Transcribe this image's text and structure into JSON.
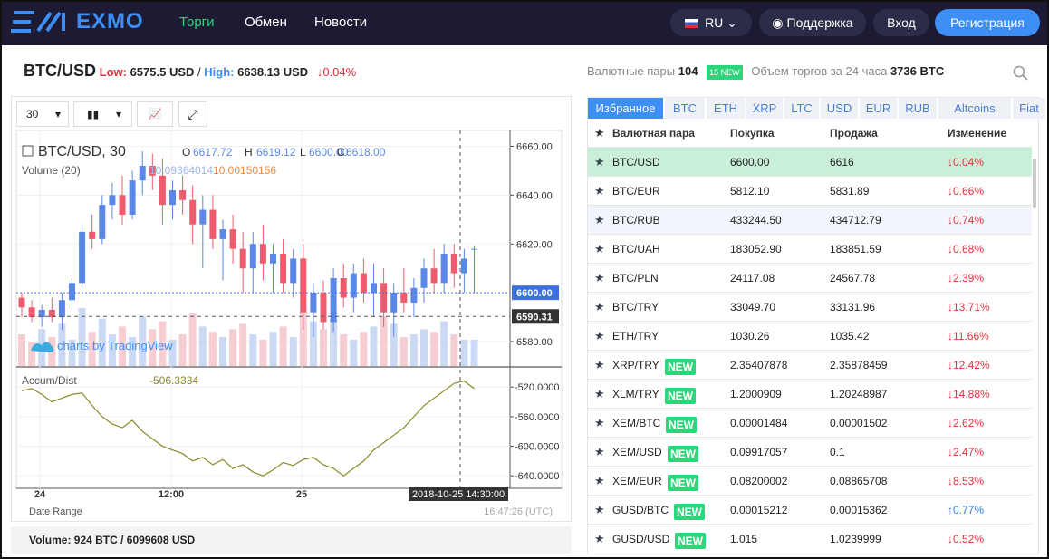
{
  "nav": {
    "logo": "EXMO",
    "menu": [
      "Торги",
      "Обмен",
      "Новости"
    ],
    "lang": "RU",
    "support": "Поддержка",
    "login": "Вход",
    "register": "Регистрация"
  },
  "ticker": {
    "pair": "BTC/USD",
    "low_label": "Low:",
    "low": "6575.5 USD",
    "separator": "/",
    "high_label": "High:",
    "high": "6638.13 USD",
    "change": "↓0.04%"
  },
  "stats": {
    "pairs_label": "Валютные пары",
    "pairs": "104",
    "new_badge": "15 NEW",
    "volume_label": "Объем торгов за 24 часа",
    "volume": "3736 BTC"
  },
  "toolbar": {
    "interval": "30"
  },
  "price_chart": {
    "symbol": "BTC/USD, 30",
    "ohlc_labels": [
      "O",
      "H",
      "L",
      "C"
    ],
    "ohlc": [
      "6617.72",
      "6619.12",
      "6600.00",
      "6618.00"
    ],
    "volume_label": "Volume (20)",
    "volume_values": [
      "10.09364014",
      "10.00150156"
    ],
    "indicator": "Accum/Dist",
    "indicator_value": "-506.3334",
    "watermark": "charts by TradingView",
    "candles": [
      [
        6598,
        6600,
        6590,
        6594
      ],
      [
        6594,
        6597,
        6588,
        6590
      ],
      [
        6590,
        6595,
        6586,
        6593
      ],
      [
        6593,
        6598,
        6588,
        6590
      ],
      [
        6590,
        6600,
        6585,
        6597
      ],
      [
        6597,
        6606,
        6593,
        6604
      ],
      [
        6604,
        6628,
        6602,
        6625
      ],
      [
        6625,
        6632,
        6618,
        6622
      ],
      [
        6622,
        6640,
        6620,
        6636
      ],
      [
        6636,
        6645,
        6630,
        6640
      ],
      [
        6640,
        6648,
        6628,
        6632
      ],
      [
        6632,
        6650,
        6630,
        6646
      ],
      [
        6646,
        6658,
        6640,
        6652
      ],
      [
        6652,
        6657,
        6642,
        6648
      ],
      [
        6648,
        6655,
        6628,
        6636
      ],
      [
        6636,
        6646,
        6630,
        6642
      ],
      [
        6642,
        6648,
        6632,
        6638
      ],
      [
        6638,
        6644,
        6620,
        6628
      ],
      [
        6628,
        6640,
        6610,
        6634
      ],
      [
        6634,
        6640,
        6618,
        6622
      ],
      [
        6622,
        6630,
        6605,
        6626
      ],
      [
        6626,
        6632,
        6612,
        6618
      ],
      [
        6618,
        6625,
        6600,
        6610
      ],
      [
        6610,
        6625,
        6600,
        6620
      ],
      [
        6620,
        6628,
        6605,
        6612
      ],
      [
        6612,
        6620,
        6600,
        6616
      ],
      [
        6616,
        6622,
        6600,
        6604
      ],
      [
        6604,
        6618,
        6598,
        6614
      ],
      [
        6614,
        6620,
        6585,
        6592
      ],
      [
        6592,
        6604,
        6582,
        6600
      ],
      [
        6600,
        6605,
        6585,
        6588
      ],
      [
        6588,
        6610,
        6584,
        6606
      ],
      [
        6606,
        6612,
        6594,
        6598
      ],
      [
        6598,
        6612,
        6592,
        6608
      ],
      [
        6608,
        6614,
        6596,
        6600
      ],
      [
        6600,
        6612,
        6590,
        6604
      ],
      [
        6604,
        6610,
        6586,
        6592
      ],
      [
        6592,
        6604,
        6582,
        6600
      ],
      [
        6600,
        6610,
        6592,
        6596
      ],
      [
        6596,
        6606,
        6590,
        6602
      ],
      [
        6602,
        6614,
        6596,
        6610
      ],
      [
        6610,
        6618,
        6600,
        6604
      ],
      [
        6604,
        6620,
        6600,
        6616
      ],
      [
        6616,
        6620,
        6602,
        6608
      ],
      [
        6608,
        6618,
        6600,
        6614
      ],
      [
        6617.72,
        6619.12,
        6600,
        6618
      ]
    ],
    "volumes": [
      12,
      9,
      14,
      11,
      16,
      10,
      22,
      13,
      18,
      12,
      15,
      11,
      19,
      14,
      17,
      10,
      12,
      20,
      15,
      13,
      11,
      14,
      16,
      12,
      10,
      13,
      15,
      11,
      21,
      17,
      14,
      18,
      12,
      10,
      13,
      15,
      19,
      16,
      11,
      12,
      14,
      13,
      17,
      12,
      10,
      10
    ],
    "ylim": [
      6570,
      6665
    ],
    "yticks": [
      {
        "value": 6660,
        "label": "6660.00"
      },
      {
        "value": 6640,
        "label": "6640.00"
      },
      {
        "value": 6620,
        "label": "6620.00"
      },
      {
        "value": 6580,
        "label": "6580.00"
      }
    ],
    "last_price": {
      "value": 6600,
      "label": "6600.00"
    },
    "cross_price": {
      "value": 6590.31,
      "label": "6590.31"
    },
    "ad_values": [
      -525,
      -522,
      -530,
      -540,
      -535,
      -530,
      -528,
      -545,
      -560,
      -570,
      -575,
      -565,
      -580,
      -590,
      -600,
      -605,
      -610,
      -620,
      -615,
      -625,
      -618,
      -630,
      -625,
      -635,
      -640,
      -632,
      -622,
      -626,
      -618,
      -615,
      -625,
      -630,
      -640,
      -630,
      -620,
      -605,
      -595,
      -585,
      -575,
      -560,
      -545,
      -535,
      -525,
      -515,
      -512,
      -522
    ],
    "ad_ylim": [
      -652,
      -494
    ],
    "ad_yticks": [
      {
        "value": -520,
        "label": "-520.0000"
      },
      {
        "value": -560,
        "label": "-560.0000"
      },
      {
        "value": -600,
        "label": "-600.0000"
      },
      {
        "value": -640,
        "label": "-640.0000"
      }
    ],
    "xticks": [
      "24",
      "12:00",
      "25"
    ],
    "cross_time": "2018-10-25 14:30:00"
  },
  "footer": {
    "date_range": "Date Range",
    "time": "16:47:26 (UTC)",
    "volume": "Volume: 924 BTC / 6099608 USD"
  },
  "pairs_table": {
    "tabs": [
      "Избранное",
      "BTC",
      "ETH",
      "XRP",
      "LTC",
      "USD",
      "EUR",
      "RUB",
      "Altcoins",
      "Fiat"
    ],
    "columns": [
      "Валютная пара",
      "Покупка",
      "Продажа",
      "Изменение"
    ],
    "rows": [
      {
        "pair": "BTC/USD",
        "buy": "6600.00",
        "sell": "6616",
        "change": "↓0.04%"
      },
      {
        "pair": "BTC/EUR",
        "buy": "5812.10",
        "sell": "5831.89",
        "change": "↓0.66%"
      },
      {
        "pair": "BTC/RUB",
        "buy": "433244.50",
        "sell": "434712.79",
        "change": "↓0.74%"
      },
      {
        "pair": "BTC/UAH",
        "buy": "183052.90",
        "sell": "183851.59",
        "change": "↓0.68%"
      },
      {
        "pair": "BTC/PLN",
        "buy": "24117.08",
        "sell": "24567.78",
        "change": "↓2.39%"
      },
      {
        "pair": "BTC/TRY",
        "buy": "33049.70",
        "sell": "33131.96",
        "change": "↓13.71%"
      },
      {
        "pair": "ETH/TRY",
        "buy": "1030.26",
        "sell": "1035.42",
        "change": "↓11.66%"
      },
      {
        "pair": "XRP/TRY",
        "badge": "NEW",
        "buy": "2.35407878",
        "sell": "2.35878459",
        "change": "↓12.42%"
      },
      {
        "pair": "XLM/TRY",
        "badge": "NEW",
        "buy": "1.2000909",
        "sell": "1.20248987",
        "change": "↓14.88%"
      },
      {
        "pair": "XEM/BTC",
        "badge": "NEW",
        "buy": "0.00001484",
        "sell": "0.00001502",
        "change": "↓2.62%"
      },
      {
        "pair": "XEM/USD",
        "badge": "NEW",
        "buy": "0.09917057",
        "sell": "0.1",
        "change": "↓2.47%"
      },
      {
        "pair": "XEM/EUR",
        "badge": "NEW",
        "buy": "0.08200002",
        "sell": "0.08865708",
        "change": "↓8.53%"
      },
      {
        "pair": "GUSD/BTC",
        "badge": "NEW",
        "buy": "0.00015212",
        "sell": "0.00015362",
        "change": "↑0.77%"
      },
      {
        "pair": "GUSD/USD",
        "badge": "NEW",
        "buy": "1.015",
        "sell": "1.0239999",
        "change": "↓0.52%"
      }
    ]
  }
}
